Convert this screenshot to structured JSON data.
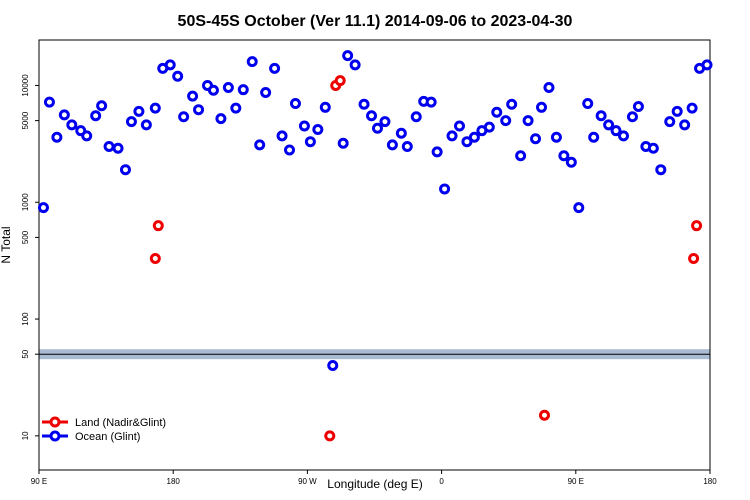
{
  "chart_data": {
    "type": "scatter",
    "title": "50S-45S October (Ver 11.1)   2014-09-06 to 2023-04-30",
    "xlabel": "Longitude (deg E)",
    "ylabel": "N Total",
    "xlim": [
      90,
      540
    ],
    "xticks": [
      {
        "value": 90,
        "label": "90 E"
      },
      {
        "value": 180,
        "label": "180"
      },
      {
        "value": 270,
        "label": "90 W"
      },
      {
        "value": 360,
        "label": "0"
      },
      {
        "value": 450,
        "label": "90 E"
      },
      {
        "value": 540,
        "label": "180"
      }
    ],
    "ylim": [
      5.1,
      24500
    ],
    "log_y": true,
    "yticks": [
      10,
      50,
      100,
      500,
      1000,
      5000,
      10000
    ],
    "hline": 50,
    "legend": "lower left",
    "series": [
      {
        "name": "Land (Nadir&Glint)",
        "color": "#ee0000",
        "x": [
          168,
          170,
          289,
          292,
          285,
          429,
          529,
          531
        ],
        "values": [
          330,
          630,
          10000,
          11000,
          10,
          15,
          330,
          630
        ]
      },
      {
        "name": "Ocean (Glint)",
        "color": "#0000ee",
        "x": [
          93,
          97,
          102,
          107,
          112,
          118,
          122,
          128,
          132,
          137,
          143,
          148,
          152,
          157,
          162,
          168,
          173,
          178,
          183,
          187,
          193,
          197,
          203,
          207,
          212,
          217,
          222,
          227,
          233,
          238,
          242,
          248,
          253,
          258,
          262,
          268,
          272,
          277,
          282,
          287,
          294,
          297,
          302,
          308,
          313,
          317,
          322,
          327,
          333,
          337,
          343,
          348,
          353,
          357,
          362,
          367,
          372,
          377,
          382,
          387,
          392,
          397,
          403,
          407,
          413,
          418,
          423,
          427,
          432,
          437,
          442,
          447,
          452,
          458,
          462,
          467,
          472,
          477,
          482,
          488,
          492,
          497,
          502,
          507,
          513,
          518,
          523,
          528,
          533,
          538
        ],
        "values": [
          900,
          7200,
          3600,
          5600,
          4600,
          4100,
          3700,
          5500,
          6700,
          3000,
          2900,
          1900,
          4900,
          6000,
          4600,
          6400,
          14000,
          15000,
          12000,
          5400,
          8100,
          6200,
          10000,
          9100,
          5200,
          9600,
          6400,
          9200,
          16000,
          3100,
          8700,
          14000,
          3700,
          2800,
          7000,
          4500,
          3300,
          4200,
          6500,
          40,
          3200,
          18000,
          15000,
          6900,
          5500,
          4300,
          4900,
          3100,
          3900,
          3000,
          5400,
          7300,
          7200,
          2700,
          1300,
          3700,
          4500,
          3300,
          3600,
          4100,
          4400,
          5900,
          5000,
          6900,
          2500,
          5000,
          3500,
          6500,
          9600,
          3600,
          2500,
          2200,
          900,
          7000,
          3600,
          5500,
          4600,
          4100,
          3700,
          5400,
          6600,
          3000,
          2900,
          1900,
          4900,
          6000,
          4600,
          6400,
          14000,
          15000
        ]
      }
    ]
  }
}
